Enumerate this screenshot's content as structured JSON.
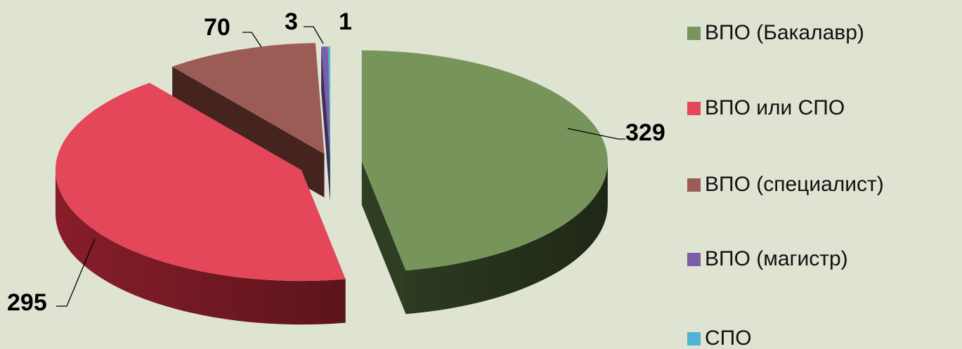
{
  "chart_data": {
    "type": "pie",
    "title": "",
    "legend_position": "right",
    "categories": [
      "ВПО (Бакалавр)",
      "ВПО или СПО",
      "ВПО (специалист)",
      "ВПО (магистр)",
      "СПО"
    ],
    "values": [
      329,
      295,
      70,
      3,
      1
    ],
    "labels": [
      "329",
      "295",
      "70",
      "3",
      "1"
    ],
    "colors": [
      "#77955a",
      "#e4475a",
      "#9b5c56",
      "#7b5da8",
      "#4fb4cf"
    ],
    "side_colors": [
      "#2f3d22",
      "#8e1f2c",
      "#452420",
      "#3f2e5a",
      "#286374"
    ],
    "style": "3d-exploded"
  }
}
